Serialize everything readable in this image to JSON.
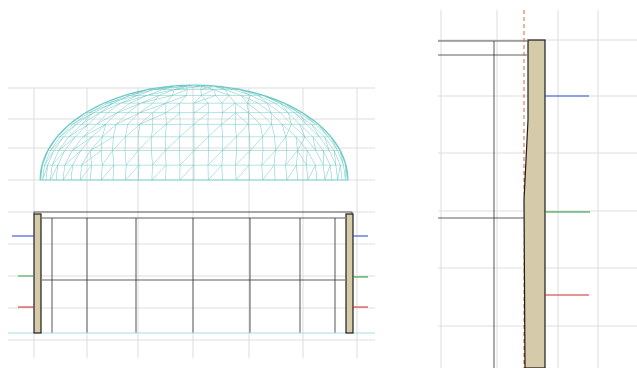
{
  "views": {
    "elevation": {
      "name": "dome-elevation-view"
    },
    "section": {
      "name": "wall-section-detail-view"
    }
  },
  "colors": {
    "grid": "#dedede",
    "mesh": "#6cc9c6",
    "wall_fill": "#d6cba9",
    "outline": "#1d1d1d",
    "level_blue": "#1f3fd1",
    "level_green": "#1f9a3a",
    "level_red": "#d12a2a",
    "axis_dashed": "#e0603a",
    "floor_line": "#a8d8e8"
  },
  "level_markers": [
    {
      "name": "level-marker-blue",
      "color": "#1f3fd1",
      "label": ""
    },
    {
      "name": "level-marker-green",
      "color": "#1f9a3a",
      "label": ""
    },
    {
      "name": "level-marker-red",
      "color": "#d12a2a",
      "label": ""
    }
  ]
}
